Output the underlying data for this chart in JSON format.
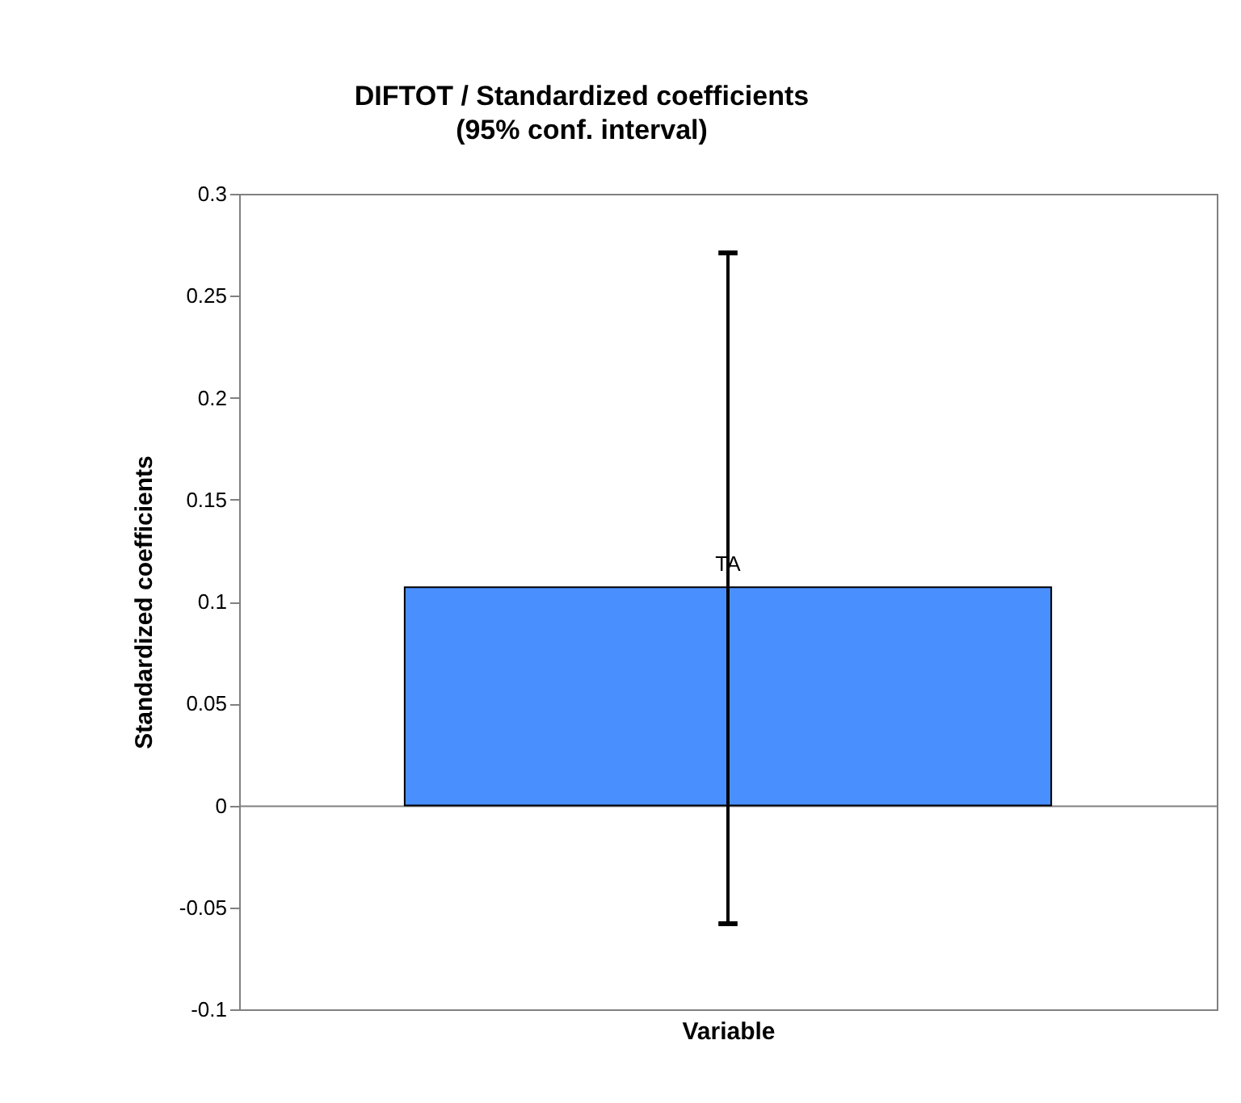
{
  "chart_data": {
    "type": "bar",
    "title": "DIFTOT / Standardized coefficients",
    "subtitle": "(95% conf. interval)",
    "xlabel": "Variable",
    "ylabel": "Standardized coefficients",
    "categories": [
      "TA"
    ],
    "series": [
      {
        "color": "#4a8ffe",
        "values": [
          0.107
        ],
        "errors": [
          [
            -0.058,
            0.271
          ]
        ]
      }
    ],
    "ylim": [
      -0.1,
      0.3
    ],
    "yticks": [
      -0.1,
      -0.05,
      0,
      0.05,
      0.1,
      0.15,
      0.2,
      0.25,
      0.3
    ],
    "tick_labels": "y",
    "grid": false
  }
}
